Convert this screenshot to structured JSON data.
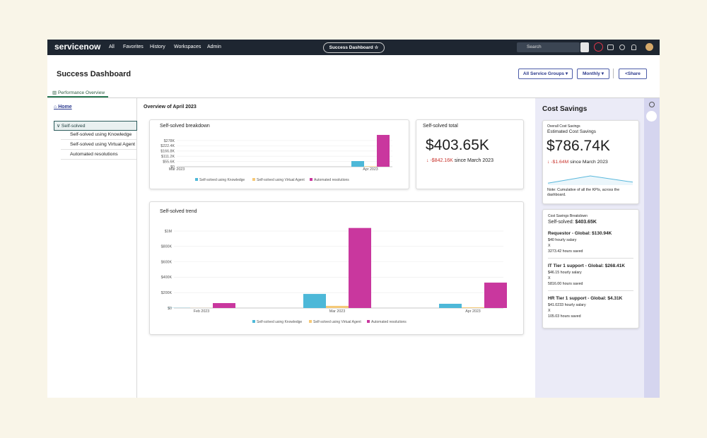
{
  "nav": {
    "logo": "servicenow",
    "menu": [
      "All",
      "Favorites",
      "History",
      "Workspaces",
      "Admin"
    ],
    "center_tab": "Success Dashboard",
    "search": "Search"
  },
  "header": {
    "title": "Success Dashboard",
    "filters": [
      "All Service Groups",
      "Monthly"
    ],
    "share": "Share",
    "tab": "Performance Overview"
  },
  "sidebar": {
    "home": "Home",
    "group": "Self-solved",
    "items": [
      "Self-solved using Knowledge",
      "Self-solved using Virtual Agent",
      "Automated resolutions"
    ]
  },
  "overview": "Overview of April 2023",
  "total_card": {
    "title": "Self-solved total",
    "value": "$403.65K",
    "change": "-$842.16K",
    "since": "since March 2023"
  },
  "cost_savings": {
    "title": "Cost Savings",
    "overall": {
      "label": "Overall Cost Savings",
      "title": "Estimated Cost Savings",
      "value": "$786.74K",
      "change": "-$1.64M",
      "since": "since March 2023",
      "note": "Note: Cumulative of all the KPIs, across the dashboard."
    },
    "breakdown": {
      "label": "Cost Savings Breakdown",
      "prefix": "Self-solved:",
      "total": "$403.65K",
      "items": [
        {
          "title": "Requestor - Global: $130.94K",
          "salary": "$40 hourly salary",
          "op": "X",
          "hours": "3273.42 hours saved"
        },
        {
          "title": "IT Tier 1 support - Global: $268.41K",
          "salary": "$46.15 hourly salary",
          "op": "X",
          "hours": "5816.00 hours saved"
        },
        {
          "title": "HR Tier 1 support - Global: $4.31K",
          "salary": "$41.0233 hourly salary",
          "op": "X",
          "hours": "105.03 hours saved"
        }
      ]
    }
  },
  "chart_data": [
    {
      "type": "bar",
      "title": "Self-solved breakdown",
      "categories": [
        "Mar 2023",
        "Apr 2023"
      ],
      "series": [
        {
          "name": "Self-solved using Knowledge",
          "color": "#4db8d8",
          "values": [
            0,
            60000
          ]
        },
        {
          "name": "Self-solved using Virtual Agent",
          "color": "#f5c978",
          "values": [
            0,
            5000
          ]
        },
        {
          "name": "Automated resolutions",
          "color": "#c9379e",
          "values": [
            0,
            338000
          ]
        }
      ],
      "ylim": [
        0,
        340000
      ],
      "yticks": [
        {
          "value": 0,
          "label": "$0"
        },
        {
          "value": 55600,
          "label": "$55.6K"
        },
        {
          "value": 111200,
          "label": "$111.2K"
        },
        {
          "value": 166800,
          "label": "$166.8K"
        },
        {
          "value": 222400,
          "label": "$222.4K"
        },
        {
          "value": 278000,
          "label": "$278K"
        }
      ],
      "grid": true
    },
    {
      "type": "bar",
      "title": "Self-solved trend",
      "categories": [
        "Feb 2023",
        "Mar 2023",
        "Apr 2023"
      ],
      "series": [
        {
          "name": "Self-solved using Knowledge",
          "color": "#4db8d8",
          "values": [
            2000,
            183000,
            55000
          ]
        },
        {
          "name": "Self-solved using Virtual Agent",
          "color": "#f5c978",
          "values": [
            1000,
            28000,
            9000
          ]
        },
        {
          "name": "Automated resolutions",
          "color": "#c9379e",
          "values": [
            64000,
            1040000,
            330000
          ]
        }
      ],
      "ylim": [
        0,
        1050000
      ],
      "yticks": [
        {
          "value": 0,
          "label": "$0"
        },
        {
          "value": 200000,
          "label": "$200K"
        },
        {
          "value": 400000,
          "label": "$400K"
        },
        {
          "value": 600000,
          "label": "$600K"
        },
        {
          "value": 800000,
          "label": "$800K"
        },
        {
          "value": 1000000,
          "label": "$1M"
        }
      ],
      "grid": true
    },
    {
      "type": "line",
      "values": [
        520000,
        2426740,
        786740
      ],
      "ylim": [
        0,
        3000000
      ],
      "color": "#5ab8dc"
    }
  ]
}
